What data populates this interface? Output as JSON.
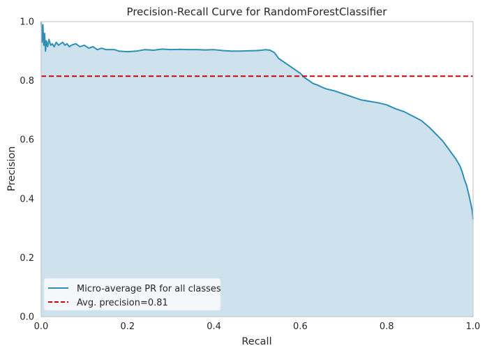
{
  "chart_data": {
    "type": "area",
    "title": "Precision-Recall Curve for RandomForestClassifier",
    "xlabel": "Recall",
    "ylabel": "Precision",
    "xlim": [
      0,
      1
    ],
    "ylim": [
      0,
      1
    ],
    "xticks": [
      "0.0",
      "0.2",
      "0.4",
      "0.6",
      "0.8",
      "1.0"
    ],
    "yticks": [
      "0.0",
      "0.2",
      "0.4",
      "0.6",
      "0.8",
      "1.0"
    ],
    "grid": false,
    "legend_position": "lower-left",
    "series": [
      {
        "name": "Micro-average PR for all classes",
        "kind": "line-with-filled-area",
        "color": "#2e8fb5",
        "fill_color": "#cde2ec",
        "x": [
          0.0,
          0.002,
          0.004,
          0.006,
          0.008,
          0.01,
          0.012,
          0.015,
          0.018,
          0.022,
          0.026,
          0.03,
          0.035,
          0.04,
          0.045,
          0.05,
          0.055,
          0.06,
          0.065,
          0.07,
          0.08,
          0.09,
          0.1,
          0.11,
          0.12,
          0.13,
          0.14,
          0.15,
          0.16,
          0.17,
          0.18,
          0.2,
          0.22,
          0.24,
          0.26,
          0.28,
          0.3,
          0.32,
          0.34,
          0.36,
          0.38,
          0.4,
          0.42,
          0.44,
          0.46,
          0.48,
          0.5,
          0.51,
          0.52,
          0.53,
          0.54,
          0.55,
          0.56,
          0.57,
          0.58,
          0.59,
          0.6,
          0.61,
          0.62,
          0.63,
          0.64,
          0.65,
          0.66,
          0.68,
          0.7,
          0.72,
          0.74,
          0.76,
          0.78,
          0.8,
          0.82,
          0.84,
          0.86,
          0.88,
          0.9,
          0.91,
          0.92,
          0.93,
          0.94,
          0.95,
          0.96,
          0.97,
          0.975,
          0.98,
          0.985,
          0.99,
          0.993,
          0.996,
          0.998,
          1.0
        ],
        "y": [
          1.0,
          0.93,
          0.99,
          0.92,
          0.96,
          0.9,
          0.935,
          0.915,
          0.94,
          0.92,
          0.925,
          0.915,
          0.93,
          0.92,
          0.925,
          0.93,
          0.92,
          0.925,
          0.915,
          0.92,
          0.925,
          0.915,
          0.92,
          0.91,
          0.915,
          0.905,
          0.91,
          0.905,
          0.905,
          0.905,
          0.9,
          0.898,
          0.9,
          0.905,
          0.903,
          0.907,
          0.905,
          0.906,
          0.905,
          0.905,
          0.904,
          0.905,
          0.902,
          0.9,
          0.9,
          0.901,
          0.902,
          0.903,
          0.905,
          0.903,
          0.895,
          0.875,
          0.865,
          0.855,
          0.845,
          0.835,
          0.825,
          0.81,
          0.8,
          0.79,
          0.785,
          0.778,
          0.772,
          0.765,
          0.755,
          0.745,
          0.735,
          0.73,
          0.725,
          0.718,
          0.705,
          0.695,
          0.68,
          0.665,
          0.64,
          0.625,
          0.61,
          0.595,
          0.575,
          0.555,
          0.535,
          0.51,
          0.49,
          0.465,
          0.445,
          0.415,
          0.395,
          0.375,
          0.36,
          0.33
        ]
      },
      {
        "name": "Avg. precision=0.81",
        "kind": "horizontal-dashed-line",
        "color": "#cc0000",
        "y": 0.815
      }
    ]
  }
}
